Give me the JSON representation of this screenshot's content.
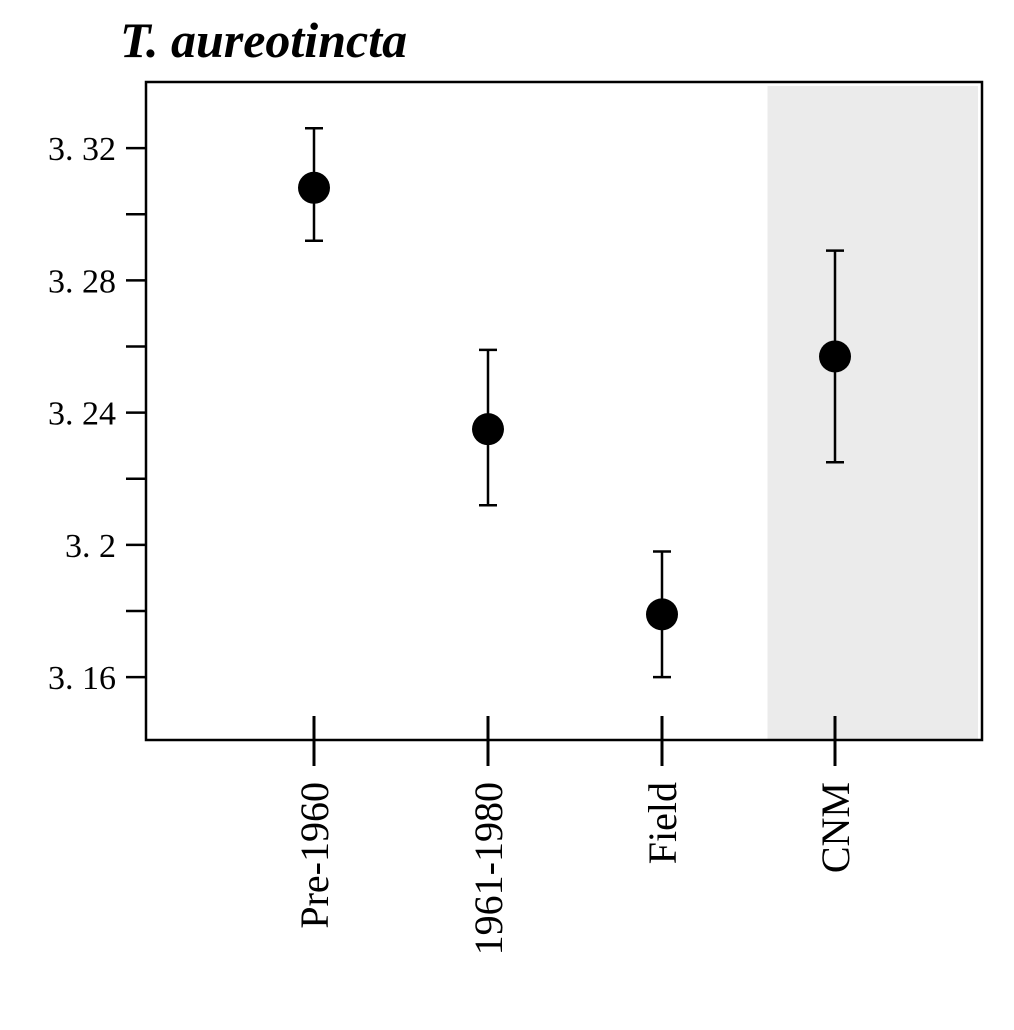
{
  "chart_data": {
    "type": "scatter",
    "title": "T. aureotincta",
    "xlabel": "",
    "ylabel": "",
    "categories": [
      "Pre-1960",
      "1961-1980",
      "Field",
      "CNM"
    ],
    "series": [
      {
        "values": [
          3.308,
          3.235,
          3.179,
          3.257
        ],
        "lower": [
          3.292,
          3.212,
          3.16,
          3.225
        ],
        "upper": [
          3.326,
          3.259,
          3.198,
          3.289
        ]
      }
    ],
    "shaded_category": "CNM",
    "ylim": [
      3.141,
      3.34
    ],
    "yticks": [
      3.16,
      3.2,
      3.24,
      3.28,
      3.32
    ],
    "ytick_labels": [
      "3. 16",
      "3. 2",
      "3. 24",
      "3. 28",
      "3. 32"
    ],
    "minor_yticks": [
      3.18,
      3.22,
      3.26,
      3.3
    ],
    "grid": false,
    "colors": {
      "marker": "#000000",
      "shade": "#ebebeb",
      "axis": "#000000"
    }
  }
}
